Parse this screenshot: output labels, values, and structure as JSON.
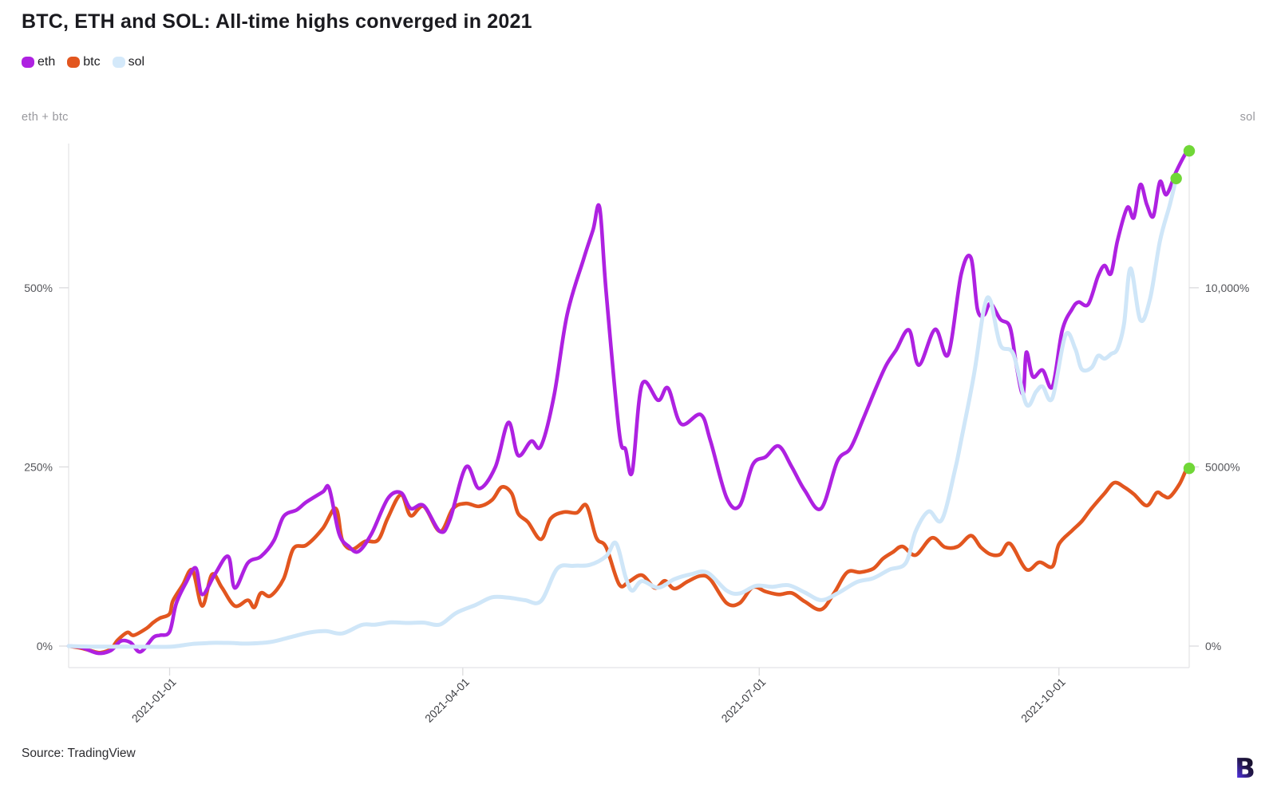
{
  "title": "BTC, ETH and SOL: All-time highs converged in 2021",
  "source": "Source: TradingView",
  "logo_letter": "B",
  "legend": [
    {
      "label": "eth",
      "color": "#ae21e1"
    },
    {
      "label": "btc",
      "color": "#e2561f"
    },
    {
      "label": "sol",
      "color": "#d4e9fa"
    }
  ],
  "colors": {
    "eth_line": "#ae21e1",
    "btc_line": "#e2561f",
    "sol_line": "#cfe6f8",
    "end_dot": "#70d737",
    "axis_line": "#e4e4e6",
    "tick_mark": "#dcdcde",
    "tick_text": "#54555a",
    "date_text": "#3f4045"
  },
  "chart_data": {
    "type": "line",
    "title": "BTC, ETH and SOL: All-time highs converged in 2021",
    "grid": false,
    "legend_position": "top-left",
    "start_date": "2020-12-01",
    "left_axis": {
      "label": "eth + btc",
      "ticks": [
        {
          "value": 0,
          "text": "0%"
        },
        {
          "value": 250,
          "text": "250%"
        },
        {
          "value": 500,
          "text": "500%"
        }
      ],
      "range": [
        -30,
        700
      ]
    },
    "right_axis": {
      "label": "sol",
      "ticks": [
        {
          "value": 0,
          "text": "0%"
        },
        {
          "value": 5000,
          "text": "5000%"
        },
        {
          "value": 10000,
          "text": "10,000%"
        }
      ],
      "range": [
        -600,
        14000
      ]
    },
    "x_axis": {
      "ticks": [
        {
          "day": 31,
          "text": "2021-01-01"
        },
        {
          "day": 121,
          "text": "2021-04-01"
        },
        {
          "day": 212,
          "text": "2021-07-01"
        },
        {
          "day": 304,
          "text": "2021-10-01"
        }
      ],
      "range_days": [
        0,
        344
      ]
    },
    "end_dot_color": "#70d737",
    "series": [
      {
        "name": "eth",
        "axis": "left",
        "color": "#ae21e1",
        "end_dot": true,
        "points": [
          [
            0,
            0
          ],
          [
            4,
            -2
          ],
          [
            9,
            -10
          ],
          [
            13,
            -6
          ],
          [
            16,
            7
          ],
          [
            19,
            5
          ],
          [
            22,
            -8
          ],
          [
            26,
            12
          ],
          [
            28,
            15
          ],
          [
            31,
            20
          ],
          [
            33,
            59
          ],
          [
            36,
            88
          ],
          [
            39,
            109
          ],
          [
            41,
            72
          ],
          [
            45,
            101
          ],
          [
            49,
            125
          ],
          [
            51,
            81
          ],
          [
            55,
            116
          ],
          [
            59,
            125
          ],
          [
            63,
            147
          ],
          [
            66,
            181
          ],
          [
            70,
            190
          ],
          [
            73,
            201
          ],
          [
            78,
            215
          ],
          [
            80,
            220
          ],
          [
            83,
            157
          ],
          [
            86,
            139
          ],
          [
            89,
            132
          ],
          [
            93,
            157
          ],
          [
            98,
            206
          ],
          [
            102,
            214
          ],
          [
            105,
            192
          ],
          [
            109,
            196
          ],
          [
            114,
            160
          ],
          [
            117,
            176
          ],
          [
            122,
            250
          ],
          [
            126,
            220
          ],
          [
            131,
            250
          ],
          [
            135,
            312
          ],
          [
            138,
            266
          ],
          [
            142,
            286
          ],
          [
            145,
            279
          ],
          [
            149,
            349
          ],
          [
            153,
            462
          ],
          [
            158,
            539
          ],
          [
            161,
            581
          ],
          [
            163,
            612
          ],
          [
            165,
            495
          ],
          [
            169,
            299
          ],
          [
            171,
            274
          ],
          [
            173,
            243
          ],
          [
            176,
            365
          ],
          [
            181,
            343
          ],
          [
            184,
            360
          ],
          [
            188,
            310
          ],
          [
            194,
            323
          ],
          [
            197,
            287
          ],
          [
            202,
            207
          ],
          [
            206,
            196
          ],
          [
            210,
            253
          ],
          [
            214,
            264
          ],
          [
            218,
            279
          ],
          [
            222,
            250
          ],
          [
            226,
            217
          ],
          [
            231,
            192
          ],
          [
            236,
            258
          ],
          [
            240,
            276
          ],
          [
            244,
            318
          ],
          [
            248,
            362
          ],
          [
            251,
            392
          ],
          [
            254,
            413
          ],
          [
            258,
            441
          ],
          [
            261,
            392
          ],
          [
            266,
            442
          ],
          [
            270,
            407
          ],
          [
            274,
            519
          ],
          [
            277,
            542
          ],
          [
            279,
            470
          ],
          [
            281,
            462
          ],
          [
            283,
            478
          ],
          [
            286,
            456
          ],
          [
            289,
            445
          ],
          [
            291,
            390
          ],
          [
            293,
            352
          ],
          [
            294,
            410
          ],
          [
            296,
            376
          ],
          [
            299,
            385
          ],
          [
            302,
            362
          ],
          [
            305,
            440
          ],
          [
            308,
            470
          ],
          [
            310,
            480
          ],
          [
            313,
            477
          ],
          [
            316,
            516
          ],
          [
            318,
            531
          ],
          [
            320,
            520
          ],
          [
            322,
            566
          ],
          [
            325,
            612
          ],
          [
            327,
            598
          ],
          [
            329,
            644
          ],
          [
            331,
            616
          ],
          [
            333,
            600
          ],
          [
            335,
            648
          ],
          [
            337,
            630
          ],
          [
            340,
            662
          ],
          [
            343,
            688
          ],
          [
            344,
            691
          ]
        ]
      },
      {
        "name": "btc",
        "axis": "left",
        "color": "#e2561f",
        "end_dot": true,
        "points": [
          [
            0,
            0
          ],
          [
            4,
            -3
          ],
          [
            8,
            -8
          ],
          [
            10,
            -9
          ],
          [
            13,
            -4
          ],
          [
            15,
            8
          ],
          [
            18,
            19
          ],
          [
            20,
            15
          ],
          [
            24,
            25
          ],
          [
            26,
            33
          ],
          [
            28,
            39
          ],
          [
            31,
            45
          ],
          [
            32,
            63
          ],
          [
            35,
            85
          ],
          [
            38,
            106
          ],
          [
            41,
            56
          ],
          [
            44,
            100
          ],
          [
            47,
            82
          ],
          [
            51,
            56
          ],
          [
            55,
            64
          ],
          [
            57,
            54
          ],
          [
            59,
            74
          ],
          [
            62,
            70
          ],
          [
            66,
            94
          ],
          [
            69,
            136
          ],
          [
            73,
            141
          ],
          [
            78,
            164
          ],
          [
            82,
            192
          ],
          [
            84,
            148
          ],
          [
            87,
            135
          ],
          [
            91,
            146
          ],
          [
            95,
            148
          ],
          [
            98,
            179
          ],
          [
            102,
            211
          ],
          [
            105,
            182
          ],
          [
            109,
            195
          ],
          [
            114,
            160
          ],
          [
            118,
            192
          ],
          [
            122,
            199
          ],
          [
            126,
            195
          ],
          [
            130,
            204
          ],
          [
            133,
            222
          ],
          [
            136,
            213
          ],
          [
            138,
            185
          ],
          [
            141,
            173
          ],
          [
            145,
            149
          ],
          [
            148,
            178
          ],
          [
            152,
            187
          ],
          [
            156,
            186
          ],
          [
            159,
            196
          ],
          [
            162,
            151
          ],
          [
            165,
            138
          ],
          [
            169,
            86
          ],
          [
            172,
            90
          ],
          [
            176,
            99
          ],
          [
            180,
            81
          ],
          [
            183,
            91
          ],
          [
            186,
            80
          ],
          [
            190,
            90
          ],
          [
            194,
            98
          ],
          [
            197,
            93
          ],
          [
            202,
            60
          ],
          [
            206,
            60
          ],
          [
            210,
            82
          ],
          [
            214,
            76
          ],
          [
            218,
            72
          ],
          [
            222,
            74
          ],
          [
            226,
            62
          ],
          [
            231,
            51
          ],
          [
            235,
            74
          ],
          [
            239,
            103
          ],
          [
            243,
            103
          ],
          [
            247,
            108
          ],
          [
            250,
            122
          ],
          [
            253,
            131
          ],
          [
            256,
            139
          ],
          [
            260,
            127
          ],
          [
            265,
            151
          ],
          [
            269,
            138
          ],
          [
            273,
            139
          ],
          [
            277,
            154
          ],
          [
            280,
            138
          ],
          [
            283,
            128
          ],
          [
            286,
            128
          ],
          [
            289,
            143
          ],
          [
            294,
            107
          ],
          [
            298,
            117
          ],
          [
            302,
            111
          ],
          [
            304,
            142
          ],
          [
            308,
            161
          ],
          [
            311,
            174
          ],
          [
            314,
            192
          ],
          [
            318,
            213
          ],
          [
            321,
            228
          ],
          [
            324,
            222
          ],
          [
            327,
            212
          ],
          [
            331,
            196
          ],
          [
            334,
            214
          ],
          [
            336,
            210
          ],
          [
            338,
            208
          ],
          [
            341,
            226
          ],
          [
            343,
            245
          ],
          [
            344,
            248
          ]
        ]
      },
      {
        "name": "sol",
        "axis": "right",
        "color": "#cfe6f8",
        "end_dot": true,
        "points": [
          [
            0,
            0
          ],
          [
            8,
            -15
          ],
          [
            16,
            -15
          ],
          [
            24,
            -20
          ],
          [
            31,
            -19
          ],
          [
            34,
            10
          ],
          [
            38,
            60
          ],
          [
            41,
            76
          ],
          [
            45,
            91
          ],
          [
            50,
            86
          ],
          [
            55,
            70
          ],
          [
            62,
            113
          ],
          [
            68,
            246
          ],
          [
            74,
            379
          ],
          [
            79,
            416
          ],
          [
            84,
            352
          ],
          [
            90,
            591
          ],
          [
            94,
            597
          ],
          [
            99,
            661
          ],
          [
            104,
            645
          ],
          [
            109,
            655
          ],
          [
            114,
            602
          ],
          [
            119,
            927
          ],
          [
            125,
            1150
          ],
          [
            130,
            1363
          ],
          [
            135,
            1352
          ],
          [
            140,
            1283
          ],
          [
            145,
            1256
          ],
          [
            150,
            2161
          ],
          [
            155,
            2240
          ],
          [
            160,
            2267
          ],
          [
            165,
            2507
          ],
          [
            168,
            2874
          ],
          [
            171,
            1921
          ],
          [
            173,
            1549
          ],
          [
            176,
            1815
          ],
          [
            181,
            1629
          ],
          [
            186,
            1868
          ],
          [
            191,
            2001
          ],
          [
            196,
            2054
          ],
          [
            202,
            1549
          ],
          [
            206,
            1469
          ],
          [
            211,
            1682
          ],
          [
            216,
            1655
          ],
          [
            221,
            1698
          ],
          [
            226,
            1496
          ],
          [
            231,
            1283
          ],
          [
            236,
            1469
          ],
          [
            242,
            1788
          ],
          [
            247,
            1895
          ],
          [
            252,
            2134
          ],
          [
            257,
            2320
          ],
          [
            260,
            3198
          ],
          [
            264,
            3757
          ],
          [
            268,
            3517
          ],
          [
            272,
            4874
          ],
          [
            274,
            5751
          ],
          [
            278,
            7613
          ],
          [
            281,
            9420
          ],
          [
            283,
            9640
          ],
          [
            286,
            8411
          ],
          [
            290,
            8151
          ],
          [
            294,
            6750
          ],
          [
            297,
            7100
          ],
          [
            299,
            7243
          ],
          [
            302,
            6922
          ],
          [
            306,
            8677
          ],
          [
            309,
            8300
          ],
          [
            311,
            7730
          ],
          [
            314,
            7771
          ],
          [
            316,
            8100
          ],
          [
            318,
            8020
          ],
          [
            320,
            8150
          ],
          [
            322,
            8300
          ],
          [
            324,
            9000
          ],
          [
            326,
            10540
          ],
          [
            329,
            9100
          ],
          [
            332,
            9700
          ],
          [
            335,
            11300
          ],
          [
            338,
            12300
          ],
          [
            340,
            13050
          ]
        ]
      }
    ]
  }
}
